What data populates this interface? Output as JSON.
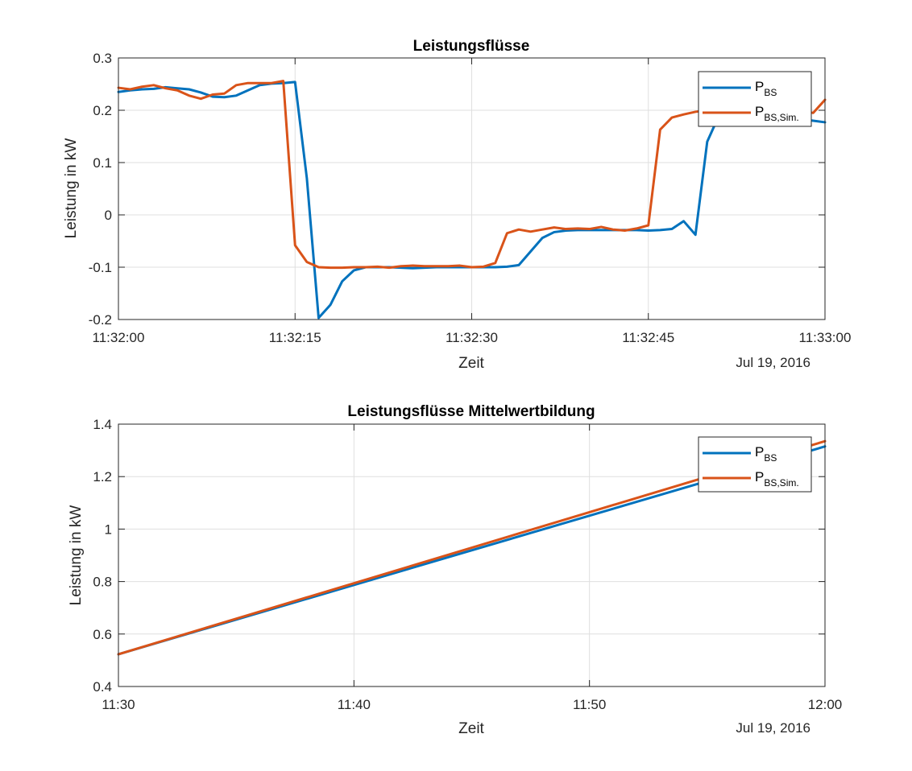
{
  "colors": {
    "series1": "#0072BD",
    "series2": "#D95319",
    "grid": "#DFDFDF",
    "axis": "#262626"
  },
  "chart_data": [
    {
      "type": "line",
      "title": "Leistungsflüsse",
      "xlabel": "Zeit",
      "ylabel": "Leistung in kW",
      "date_label": "Jul 19, 2016",
      "x_unit": "time hh:mm:ss",
      "xlim": [
        "11:32:00",
        "11:33:00"
      ],
      "ylim": [
        -0.2,
        0.3
      ],
      "xticks": [
        "11:32:00",
        "11:32:15",
        "11:32:30",
        "11:32:45",
        "11:33:00"
      ],
      "yticks": [
        "-0.2",
        "-0.1",
        "0",
        "0.1",
        "0.2",
        "0.3"
      ],
      "grid": true,
      "legend_position": "top-right",
      "legend": [
        {
          "main": "P",
          "sub": "BS"
        },
        {
          "main": "P",
          "sub": "BS,Sim."
        }
      ],
      "series": [
        {
          "name": "P_BS",
          "points": [
            [
              "11:32:00",
              0.235
            ],
            [
              "11:32:01",
              0.238
            ],
            [
              "11:32:02",
              0.24
            ],
            [
              "11:32:03",
              0.241
            ],
            [
              "11:32:04",
              0.244
            ],
            [
              "11:32:05",
              0.242
            ],
            [
              "11:32:06",
              0.24
            ],
            [
              "11:32:07",
              0.234
            ],
            [
              "11:32:08",
              0.226
            ],
            [
              "11:32:09",
              0.225
            ],
            [
              "11:32:10",
              0.228
            ],
            [
              "11:32:11",
              0.238
            ],
            [
              "11:32:12",
              0.248
            ],
            [
              "11:32:13",
              0.251
            ],
            [
              "11:32:14",
              0.252
            ],
            [
              "11:32:15",
              0.254
            ],
            [
              "11:32:16",
              0.07
            ],
            [
              "11:32:17",
              -0.197
            ],
            [
              "11:32:18",
              -0.172
            ],
            [
              "11:32:19",
              -0.127
            ],
            [
              "11:32:20",
              -0.106
            ],
            [
              "11:32:21",
              -0.1
            ],
            [
              "11:32:22",
              -0.1
            ],
            [
              "11:32:23",
              -0.1
            ],
            [
              "11:32:24",
              -0.101
            ],
            [
              "11:32:25",
              -0.102
            ],
            [
              "11:32:26",
              -0.101
            ],
            [
              "11:32:27",
              -0.1
            ],
            [
              "11:32:28",
              -0.1
            ],
            [
              "11:32:29",
              -0.1
            ],
            [
              "11:32:30",
              -0.1
            ],
            [
              "11:32:31",
              -0.1
            ],
            [
              "11:32:32",
              -0.1
            ],
            [
              "11:32:33",
              -0.099
            ],
            [
              "11:32:34",
              -0.096
            ],
            [
              "11:32:35",
              -0.07
            ],
            [
              "11:32:36",
              -0.044
            ],
            [
              "11:32:37",
              -0.033
            ],
            [
              "11:32:38",
              -0.03
            ],
            [
              "11:32:39",
              -0.029
            ],
            [
              "11:32:40",
              -0.029
            ],
            [
              "11:32:41",
              -0.029
            ],
            [
              "11:32:42",
              -0.029
            ],
            [
              "11:32:43",
              -0.029
            ],
            [
              "11:32:44",
              -0.029
            ],
            [
              "11:32:45",
              -0.03
            ],
            [
              "11:32:46",
              -0.029
            ],
            [
              "11:32:47",
              -0.027
            ],
            [
              "11:32:48",
              -0.012
            ],
            [
              "11:32:49",
              -0.038
            ],
            [
              "11:32:50",
              0.14
            ],
            [
              "11:32:51",
              0.19
            ],
            [
              "11:32:52",
              0.192
            ],
            [
              "11:32:53",
              0.195
            ],
            [
              "11:32:54",
              0.192
            ],
            [
              "11:32:55",
              0.19
            ],
            [
              "11:32:56",
              0.188
            ],
            [
              "11:32:57",
              0.185
            ],
            [
              "11:32:58",
              0.183
            ],
            [
              "11:32:59",
              0.18
            ],
            [
              "11:33:00",
              0.177
            ]
          ]
        },
        {
          "name": "P_BS,Sim.",
          "points": [
            [
              "11:32:00",
              0.243
            ],
            [
              "11:32:01",
              0.24
            ],
            [
              "11:32:02",
              0.245
            ],
            [
              "11:32:03",
              0.248
            ],
            [
              "11:32:04",
              0.242
            ],
            [
              "11:32:05",
              0.238
            ],
            [
              "11:32:06",
              0.228
            ],
            [
              "11:32:07",
              0.222
            ],
            [
              "11:32:08",
              0.23
            ],
            [
              "11:32:09",
              0.232
            ],
            [
              "11:32:10",
              0.248
            ],
            [
              "11:32:11",
              0.252
            ],
            [
              "11:32:12",
              0.252
            ],
            [
              "11:32:13",
              0.252
            ],
            [
              "11:32:14",
              0.256
            ],
            [
              "11:32:15",
              -0.058
            ],
            [
              "11:32:16",
              -0.09
            ],
            [
              "11:32:17",
              -0.1
            ],
            [
              "11:32:18",
              -0.101
            ],
            [
              "11:32:19",
              -0.101
            ],
            [
              "11:32:20",
              -0.1
            ],
            [
              "11:32:21",
              -0.1
            ],
            [
              "11:32:22",
              -0.099
            ],
            [
              "11:32:23",
              -0.101
            ],
            [
              "11:32:24",
              -0.098
            ],
            [
              "11:32:25",
              -0.097
            ],
            [
              "11:32:26",
              -0.098
            ],
            [
              "11:32:27",
              -0.098
            ],
            [
              "11:32:28",
              -0.098
            ],
            [
              "11:32:29",
              -0.097
            ],
            [
              "11:32:30",
              -0.1
            ],
            [
              "11:32:31",
              -0.099
            ],
            [
              "11:32:32",
              -0.092
            ],
            [
              "11:32:33",
              -0.035
            ],
            [
              "11:32:34",
              -0.028
            ],
            [
              "11:32:35",
              -0.032
            ],
            [
              "11:32:36",
              -0.028
            ],
            [
              "11:32:37",
              -0.024
            ],
            [
              "11:32:38",
              -0.027
            ],
            [
              "11:32:39",
              -0.026
            ],
            [
              "11:32:40",
              -0.027
            ],
            [
              "11:32:41",
              -0.023
            ],
            [
              "11:32:42",
              -0.028
            ],
            [
              "11:32:43",
              -0.03
            ],
            [
              "11:32:44",
              -0.026
            ],
            [
              "11:32:45",
              -0.02
            ],
            [
              "11:32:46",
              0.163
            ],
            [
              "11:32:47",
              0.186
            ],
            [
              "11:32:48",
              0.192
            ],
            [
              "11:32:49",
              0.197
            ],
            [
              "11:32:50",
              0.2
            ],
            [
              "11:32:51",
              0.202
            ],
            [
              "11:32:52",
              0.205
            ],
            [
              "11:32:53",
              0.205
            ],
            [
              "11:32:54",
              0.205
            ],
            [
              "11:32:55",
              0.205
            ],
            [
              "11:32:56",
              0.203
            ],
            [
              "11:32:57",
              0.2
            ],
            [
              "11:32:58",
              0.198
            ],
            [
              "11:32:59",
              0.195
            ],
            [
              "11:33:00",
              0.22
            ]
          ]
        }
      ]
    },
    {
      "type": "line",
      "title": "Leistungsflüsse Mittelwertbildung",
      "xlabel": "Zeit",
      "ylabel": "Leistung in kW",
      "date_label": "Jul 19, 2016",
      "x_unit": "time hh:mm",
      "xlim": [
        "11:30",
        "12:00"
      ],
      "ylim": [
        0.4,
        1.4
      ],
      "xticks": [
        "11:30",
        "11:40",
        "11:50",
        "12:00"
      ],
      "yticks": [
        "0.4",
        "0.6",
        "0.8",
        "1",
        "1.2",
        "1.4"
      ],
      "grid": true,
      "legend_position": "top-right",
      "legend": [
        {
          "main": "P",
          "sub": "BS"
        },
        {
          "main": "P",
          "sub": "BS,Sim."
        }
      ],
      "series": [
        {
          "name": "P_BS",
          "points": [
            [
              "11:30",
              0.523
            ],
            [
              "12:00",
              1.315
            ]
          ]
        },
        {
          "name": "P_BS,Sim.",
          "points": [
            [
              "11:30",
              0.523
            ],
            [
              "12:00",
              1.335
            ]
          ]
        }
      ]
    }
  ]
}
